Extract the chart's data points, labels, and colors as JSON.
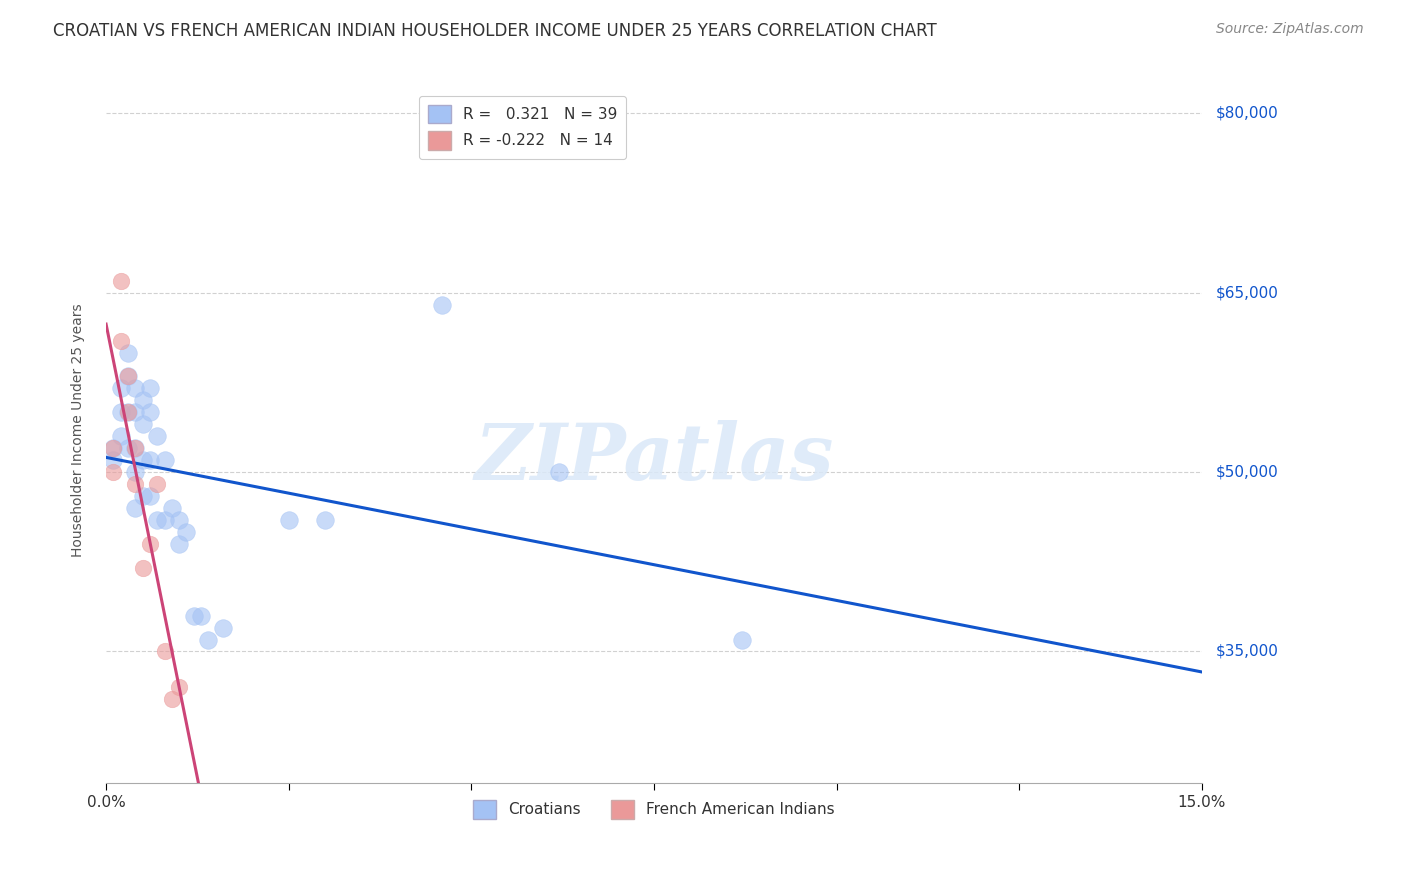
{
  "title": "CROATIAN VS FRENCH AMERICAN INDIAN HOUSEHOLDER INCOME UNDER 25 YEARS CORRELATION CHART",
  "source": "Source: ZipAtlas.com",
  "ylabel": "Householder Income Under 25 years",
  "xlim": [
    0.0,
    0.15
  ],
  "ylim": [
    24000,
    83000
  ],
  "xtick_positions": [
    0.0,
    0.025,
    0.05,
    0.075,
    0.1,
    0.125,
    0.15
  ],
  "xticklabels": [
    "0.0%",
    "",
    "",
    "",
    "",
    "",
    "15.0%"
  ],
  "ytick_positions": [
    35000,
    50000,
    65000,
    80000
  ],
  "ytick_labels": [
    "$35,000",
    "$50,000",
    "$65,000",
    "$80,000"
  ],
  "croatian_R": 0.321,
  "croatian_N": 39,
  "french_R": -0.222,
  "french_N": 14,
  "watermark": "ZIPatlas",
  "croatian_color": "#a4c2f4",
  "french_color": "#ea9999",
  "trend_croatian_color": "#1155cc",
  "trend_french_color": "#cc4477",
  "french_dash_color": "#e06090",
  "croatian_x": [
    0.001,
    0.001,
    0.002,
    0.002,
    0.002,
    0.003,
    0.003,
    0.003,
    0.003,
    0.004,
    0.004,
    0.004,
    0.004,
    0.004,
    0.005,
    0.005,
    0.005,
    0.005,
    0.006,
    0.006,
    0.006,
    0.006,
    0.007,
    0.007,
    0.008,
    0.008,
    0.009,
    0.01,
    0.01,
    0.011,
    0.012,
    0.013,
    0.014,
    0.016,
    0.025,
    0.03,
    0.046,
    0.062,
    0.087
  ],
  "croatian_y": [
    52000,
    51000,
    57000,
    55000,
    53000,
    60000,
    58000,
    55000,
    52000,
    57000,
    55000,
    52000,
    50000,
    47000,
    56000,
    54000,
    51000,
    48000,
    57000,
    55000,
    51000,
    48000,
    53000,
    46000,
    51000,
    46000,
    47000,
    46000,
    44000,
    45000,
    38000,
    38000,
    36000,
    37000,
    46000,
    46000,
    64000,
    50000,
    36000
  ],
  "french_x": [
    0.001,
    0.001,
    0.002,
    0.002,
    0.003,
    0.003,
    0.004,
    0.004,
    0.005,
    0.006,
    0.007,
    0.008,
    0.009,
    0.01
  ],
  "french_y": [
    52000,
    50000,
    66000,
    61000,
    58000,
    55000,
    52000,
    49000,
    42000,
    44000,
    49000,
    35000,
    31000,
    32000
  ],
  "background_color": "#ffffff",
  "grid_color": "#cccccc",
  "title_color": "#333333",
  "axis_label_color": "#555555",
  "ytick_color": "#1155cc",
  "title_fontsize": 12,
  "source_fontsize": 10,
  "legend_fontsize": 11,
  "trend_french_solid_end": 0.045,
  "trend_french_dash_start": 0.045
}
